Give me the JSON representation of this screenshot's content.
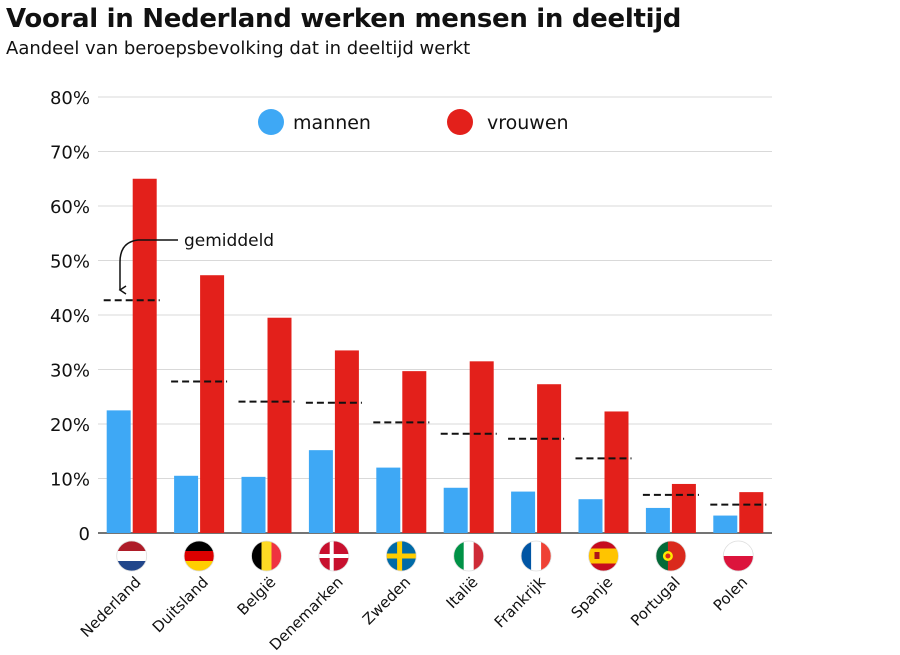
{
  "colors": {
    "mannen": "#3ea8f5",
    "vrouwen": "#e3201b",
    "grid": "#d9d9d9",
    "average_line": "#111111"
  },
  "chart_data": {
    "type": "bar",
    "title": "Vooral in Nederland werken mensen in deeltijd",
    "subtitle": "Aandeel van beroepsbevolking dat in deeltijd werkt",
    "categories": [
      "Nederland",
      "Duitsland",
      "België",
      "Denemarken",
      "Zweden",
      "Italië",
      "Frankrijk",
      "Spanje",
      "Portugal",
      "Polen"
    ],
    "category_flag_icons": [
      "flag-netherlands-icon",
      "flag-germany-icon",
      "flag-belgium-icon",
      "flag-denmark-icon",
      "flag-sweden-icon",
      "flag-italy-icon",
      "flag-france-icon",
      "flag-spain-icon",
      "flag-portugal-icon",
      "flag-poland-icon"
    ],
    "series": [
      {
        "name": "mannen",
        "color": "#3ea8f5",
        "values": [
          22.5,
          10.5,
          10.3,
          15.2,
          12.0,
          8.3,
          7.6,
          6.2,
          4.6,
          3.2
        ]
      },
      {
        "name": "vrouwen",
        "color": "#e3201b",
        "values": [
          65.0,
          47.3,
          39.5,
          33.5,
          29.7,
          31.5,
          27.3,
          22.3,
          9.0,
          7.5
        ]
      }
    ],
    "average": {
      "label": "gemiddeld",
      "values": [
        42.7,
        27.8,
        24.1,
        23.9,
        20.3,
        18.2,
        17.3,
        13.7,
        7.0,
        5.2
      ]
    },
    "ylim": [
      0,
      80
    ],
    "yticks": [
      0,
      10,
      20,
      30,
      40,
      50,
      60,
      70,
      80
    ],
    "ytick_labels": [
      "0",
      "10%",
      "20%",
      "30%",
      "40%",
      "50%",
      "60%",
      "70%",
      "80%"
    ],
    "grid": true,
    "legend_position": "top-center"
  }
}
